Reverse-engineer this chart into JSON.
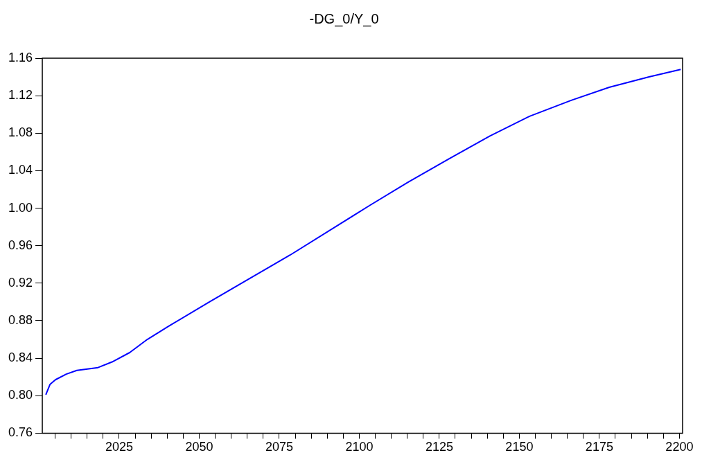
{
  "chart_data": {
    "type": "line",
    "title": "-DG_0/Y_0",
    "x": [
      2002.1,
      2003.4,
      2005.1,
      2008.5,
      2011.8,
      2018.4,
      2022.8,
      2028.3,
      2033.8,
      2040.4,
      2053.2,
      2078.4,
      2103.3,
      2115.4,
      2128.2,
      2140.8,
      2153.2,
      2166.2,
      2178.1,
      2190.5,
      2200.4
    ],
    "series": [
      {
        "color": "#0000ff",
        "values": [
          0.801,
          0.812,
          0.817,
          0.823,
          0.827,
          0.83,
          0.836,
          0.846,
          0.86,
          0.874,
          0.9,
          0.95,
          1.003,
          1.028,
          1.053,
          1.077,
          1.098,
          1.115,
          1.129,
          1.14,
          1.148
        ]
      }
    ],
    "xlim": [
      2001,
      2201
    ],
    "xticks": [
      {
        "value": 2005,
        "label": null
      },
      {
        "value": 2010,
        "label": null
      },
      {
        "value": 2015,
        "label": null
      },
      {
        "value": 2020,
        "label": null
      },
      2025,
      {
        "value": 2030,
        "label": null
      },
      {
        "value": 2035,
        "label": null
      },
      {
        "value": 2040,
        "label": null
      },
      {
        "value": 2045,
        "label": null
      },
      2050,
      {
        "value": 2055,
        "label": null
      },
      {
        "value": 2060,
        "label": null
      },
      {
        "value": 2065,
        "label": null
      },
      {
        "value": 2070,
        "label": null
      },
      2075,
      {
        "value": 2080,
        "label": null
      },
      {
        "value": 2085,
        "label": null
      },
      {
        "value": 2090,
        "label": null
      },
      {
        "value": 2095,
        "label": null
      },
      2100,
      {
        "value": 2105,
        "label": null
      },
      {
        "value": 2110,
        "label": null
      },
      {
        "value": 2115,
        "label": null
      },
      {
        "value": 2120,
        "label": null
      },
      2125,
      {
        "value": 2130,
        "label": null
      },
      {
        "value": 2135,
        "label": null
      },
      {
        "value": 2140,
        "label": null
      },
      {
        "value": 2145,
        "label": null
      },
      2150,
      {
        "value": 2155,
        "label": null
      },
      {
        "value": 2160,
        "label": null
      },
      {
        "value": 2165,
        "label": null
      },
      {
        "value": 2170,
        "label": null
      },
      2175,
      {
        "value": 2180,
        "label": null
      },
      {
        "value": 2185,
        "label": null
      },
      {
        "value": 2190,
        "label": null
      },
      {
        "value": 2195,
        "label": null
      },
      2200
    ],
    "ylim": [
      0.76,
      1.16
    ],
    "yticks": [
      0.76,
      {
        "value": 0.8,
        "label": "0.80"
      },
      0.84,
      0.88,
      0.92,
      0.96,
      {
        "value": 1.0,
        "label": "1.00"
      },
      1.04,
      1.08,
      1.12,
      1.16
    ],
    "grid": false,
    "legend": false,
    "line_style": "solid",
    "marker": "none"
  }
}
